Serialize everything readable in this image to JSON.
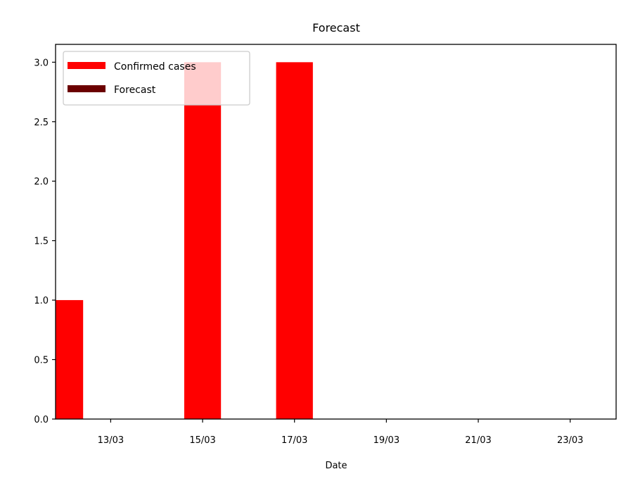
{
  "chart_data": {
    "type": "bar",
    "title": "Forecast",
    "xlabel": "Date",
    "ylabel": "",
    "x_range": [
      "12/03",
      "24/03"
    ],
    "ylim": [
      0,
      3.15
    ],
    "x_ticks": [
      "13/03",
      "15/03",
      "17/03",
      "19/03",
      "21/03",
      "23/03"
    ],
    "y_ticks": [
      "0.0",
      "0.5",
      "1.0",
      "1.5",
      "2.0",
      "2.5",
      "3.0"
    ],
    "grid": false,
    "legend_position": "top-left",
    "series": [
      {
        "name": "Confirmed cases",
        "color": "#ff0000",
        "points": [
          {
            "x": "12/03",
            "y": 1
          },
          {
            "x": "15/03",
            "y": 3
          },
          {
            "x": "17/03",
            "y": 3
          }
        ]
      },
      {
        "name": "Forecast",
        "color": "#6b0000",
        "points": []
      }
    ]
  }
}
